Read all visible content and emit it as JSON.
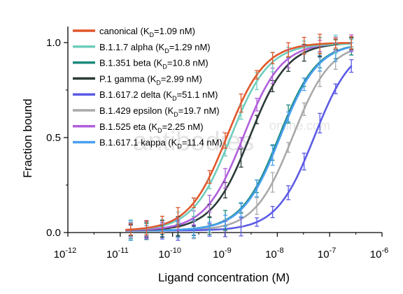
{
  "watermark": {
    "main": "antibodies",
    "side": "online.com"
  },
  "chart_data": {
    "type": "line",
    "xlabel": "Ligand concentration (M)",
    "ylabel": "Fraction bound",
    "xscale": "log",
    "xlim": [
      1e-12,
      1e-06
    ],
    "ylim": [
      0,
      1.05
    ],
    "x_tick_labels": [
      {
        "base": "10",
        "exp": "-12"
      },
      {
        "base": "10",
        "exp": "-11"
      },
      {
        "base": "10",
        "exp": "-10"
      },
      {
        "base": "10",
        "exp": "-9"
      },
      {
        "base": "10",
        "exp": "-8"
      },
      {
        "base": "10",
        "exp": "-7"
      },
      {
        "base": "10",
        "exp": "-6"
      }
    ],
    "y_ticks": [
      0.0,
      0.5,
      1.0
    ],
    "y_tick_labels": [
      "0.0",
      "0.5",
      "1.0"
    ],
    "legend_position": "top-left",
    "series": [
      {
        "prefix": "canonical (K",
        "sub": "D",
        "suffix": "=1.09 nM)",
        "kd_nM": 1.09,
        "top": 1.0,
        "hill": 1.2,
        "color": "#e0562a"
      },
      {
        "prefix": "B.1.1.7 alpha (K",
        "sub": "D",
        "suffix": "=1.29 nM)",
        "kd_nM": 1.29,
        "top": 0.995,
        "hill": 1.2,
        "color": "#6fcdbd"
      },
      {
        "prefix": "B.1.351 beta (K",
        "sub": "D",
        "suffix": "=10.8 nM)",
        "kd_nM": 10.8,
        "top": 1.0,
        "hill": 1.2,
        "color": "#1a8a7e"
      },
      {
        "prefix": "P.1 gamma (K",
        "sub": "D",
        "suffix": "=2.99 nM)",
        "kd_nM": 2.99,
        "top": 1.0,
        "hill": 1.2,
        "color": "#2b3a38"
      },
      {
        "prefix": "B.1.617.2 delta (K",
        "sub": "D",
        "suffix": "=51.1 nM)",
        "kd_nM": 51.1,
        "top": 1.0,
        "hill": 1.2,
        "color": "#5b5be6"
      },
      {
        "prefix": "B.1.429 epsilon (K",
        "sub": "D",
        "suffix": "=19.7 nM)",
        "kd_nM": 19.7,
        "top": 1.0,
        "hill": 1.2,
        "color": "#a9a9a9"
      },
      {
        "prefix": "B.1.525 eta (K",
        "sub": "D",
        "suffix": "=2.25 nM)",
        "kd_nM": 2.25,
        "top": 1.0,
        "hill": 1.2,
        "color": "#b05fdc"
      },
      {
        "prefix": "B.1.617.1 kappa (K",
        "sub": "D",
        "suffix": "=11.4 nM)",
        "kd_nM": 11.4,
        "top": 1.0,
        "hill": 1.2,
        "color": "#4aa0f0"
      }
    ]
  }
}
